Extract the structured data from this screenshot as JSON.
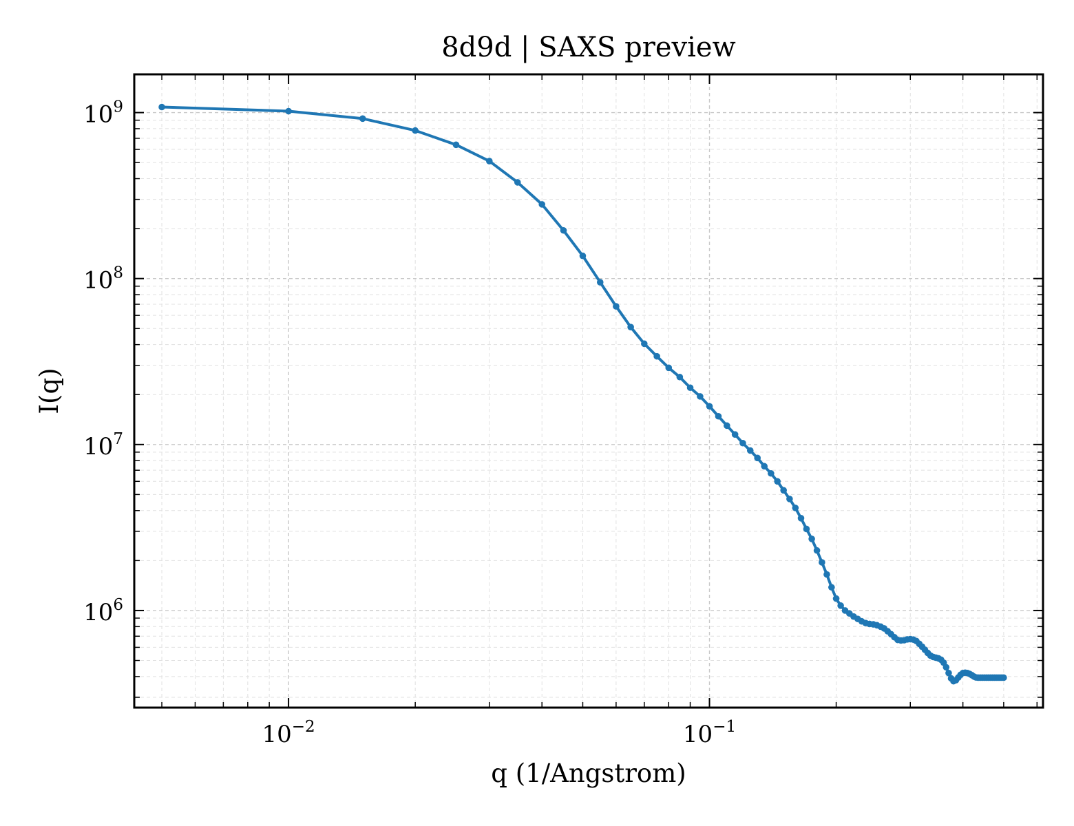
{
  "chart_data": {
    "type": "line",
    "title": "8d9d | SAXS preview",
    "xlabel": "q (1/Angstrom)",
    "ylabel": "I(q)",
    "xscale": "log",
    "yscale": "log",
    "xlim": [
      0.0043,
      0.62
    ],
    "ylim": [
      260000,
      1700000000
    ],
    "grid": true,
    "legend": "none",
    "x_ticks": [
      {
        "value": 0.01,
        "base": "10",
        "exp": "−2"
      },
      {
        "value": 0.1,
        "base": "10",
        "exp": "−1"
      }
    ],
    "y_ticks": [
      {
        "value": 1000000,
        "base": "10",
        "exp": "6"
      },
      {
        "value": 10000000,
        "base": "10",
        "exp": "7"
      },
      {
        "value": 100000000,
        "base": "10",
        "exp": "8"
      },
      {
        "value": 1000000000,
        "base": "10",
        "exp": "9"
      }
    ],
    "series": [
      {
        "color": "#1f77b4",
        "x": [
          0.005,
          0.01,
          0.015,
          0.02,
          0.025,
          0.03,
          0.035,
          0.04,
          0.045,
          0.05,
          0.055,
          0.06,
          0.065,
          0.07,
          0.075,
          0.08,
          0.085,
          0.09,
          0.095,
          0.1,
          0.105,
          0.11,
          0.115,
          0.12,
          0.125,
          0.13,
          0.135,
          0.14,
          0.145,
          0.15,
          0.155,
          0.16,
          0.165,
          0.17,
          0.175,
          0.18,
          0.185,
          0.19,
          0.195,
          0.2,
          0.205,
          0.21,
          0.215,
          0.22,
          0.225,
          0.23,
          0.235,
          0.24,
          0.245,
          0.25,
          0.255,
          0.26,
          0.265,
          0.27,
          0.275,
          0.28,
          0.285,
          0.29,
          0.295,
          0.3,
          0.305,
          0.31,
          0.315,
          0.32,
          0.325,
          0.33,
          0.335,
          0.34,
          0.345,
          0.35,
          0.355,
          0.36,
          0.365,
          0.37,
          0.375,
          0.38,
          0.385,
          0.39,
          0.395,
          0.4,
          0.405,
          0.41,
          0.415,
          0.42,
          0.425,
          0.43,
          0.435,
          0.44,
          0.445,
          0.45,
          0.455,
          0.46,
          0.465,
          0.47,
          0.475,
          0.48,
          0.485,
          0.49,
          0.495,
          0.5
        ],
        "y": [
          1080000000,
          1020000000,
          920000000,
          780000000,
          640000000,
          510000000,
          380000000,
          280000000,
          195000000,
          137000000,
          95000000,
          68000000,
          51000000,
          40500000,
          34000000,
          29000000,
          25500000,
          22000000,
          19500000,
          17000000,
          14800000,
          13000000,
          11500000,
          10200000,
          9200000,
          8300000,
          7400000,
          6700000,
          6000000,
          5300000,
          4700000,
          4150000,
          3600000,
          3100000,
          2700000,
          2300000,
          1950000,
          1650000,
          1380000,
          1180000,
          1070000,
          1000000,
          960000,
          920000,
          890000,
          860000,
          840000,
          830000,
          825000,
          815000,
          800000,
          780000,
          750000,
          720000,
          690000,
          665000,
          660000,
          662000,
          670000,
          672000,
          668000,
          655000,
          630000,
          605000,
          580000,
          555000,
          535000,
          525000,
          520000,
          515000,
          505000,
          485000,
          455000,
          420000,
          390000,
          375000,
          380000,
          395000,
          410000,
          420000,
          422000,
          420000,
          415000,
          408000,
          400000,
          395000,
          394000,
          394000,
          394000,
          394000,
          394000,
          394000,
          394000,
          394000,
          394000,
          394000,
          394000,
          394000,
          394000,
          394000
        ]
      }
    ]
  }
}
